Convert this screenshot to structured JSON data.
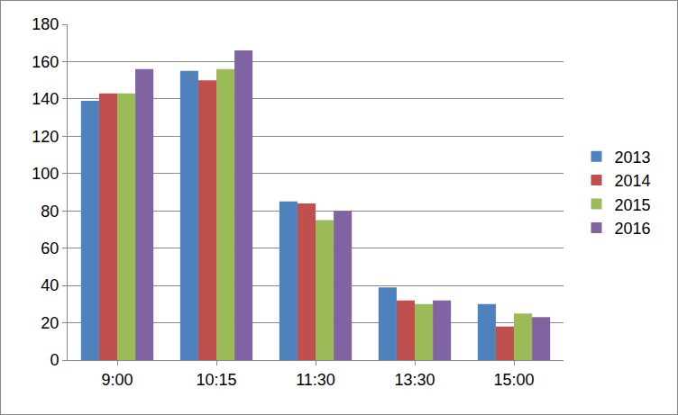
{
  "chart_data": {
    "type": "bar",
    "categories": [
      "9:00",
      "10:15",
      "11:30",
      "13:30",
      "15:00"
    ],
    "series": [
      {
        "name": "2013",
        "color": "#4f81bd",
        "values": [
          139,
          155,
          85,
          39,
          30
        ]
      },
      {
        "name": "2014",
        "color": "#c0504d",
        "values": [
          143,
          150,
          84,
          32,
          18
        ]
      },
      {
        "name": "2015",
        "color": "#9bbb59",
        "values": [
          143,
          156,
          75,
          30,
          25
        ]
      },
      {
        "name": "2016",
        "color": "#8064a2",
        "values": [
          156,
          166,
          80,
          32,
          23
        ]
      }
    ],
    "ylim": [
      0,
      180
    ],
    "yticks": [
      0,
      20,
      40,
      60,
      80,
      100,
      120,
      140,
      160,
      180
    ],
    "grid": true,
    "legend": "right"
  }
}
